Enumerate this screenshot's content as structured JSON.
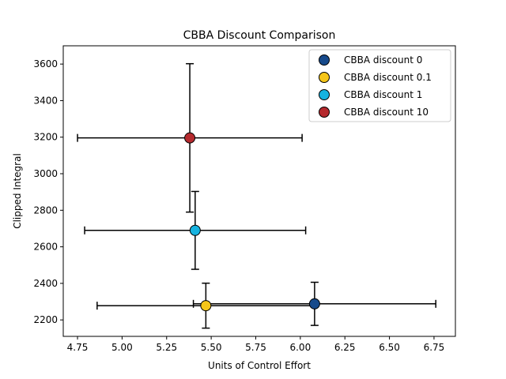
{
  "chart_data": {
    "type": "scatter",
    "title": "CBBA Discount Comparison",
    "xlabel": "Units of Control Effort",
    "ylabel": "Clipped Integral",
    "xlim": [
      4.67,
      6.87
    ],
    "ylim": [
      2110,
      3700
    ],
    "xticks": [
      4.75,
      5.0,
      5.25,
      5.5,
      5.75,
      6.0,
      6.25,
      6.5,
      6.75
    ],
    "xtick_labels": [
      "4.75",
      "5.00",
      "5.25",
      "5.50",
      "5.75",
      "6.00",
      "6.25",
      "6.50",
      "6.75"
    ],
    "yticks": [
      2200,
      2400,
      2600,
      2800,
      3000,
      3200,
      3400,
      3600
    ],
    "ytick_labels": [
      "2200",
      "2400",
      "2600",
      "2800",
      "3000",
      "3200",
      "3400",
      "3600"
    ],
    "grid": false,
    "legend_position": "top-right",
    "series": [
      {
        "name": "CBBA discount 0",
        "x": 6.08,
        "y": 2288,
        "xerr": 0.68,
        "yerr": 118,
        "color": "#174a8b"
      },
      {
        "name": "CBBA discount 0.1",
        "x": 5.47,
        "y": 2278,
        "xerr": 0.61,
        "yerr": 123,
        "color": "#f5c518"
      },
      {
        "name": "CBBA discount 1",
        "x": 5.41,
        "y": 2690,
        "xerr": 0.62,
        "yerr": 213,
        "color": "#16b3e0"
      },
      {
        "name": "CBBA discount 10",
        "x": 5.38,
        "y": 3196,
        "xerr": 0.63,
        "yerr": 406,
        "color": "#b52a2e"
      }
    ]
  }
}
